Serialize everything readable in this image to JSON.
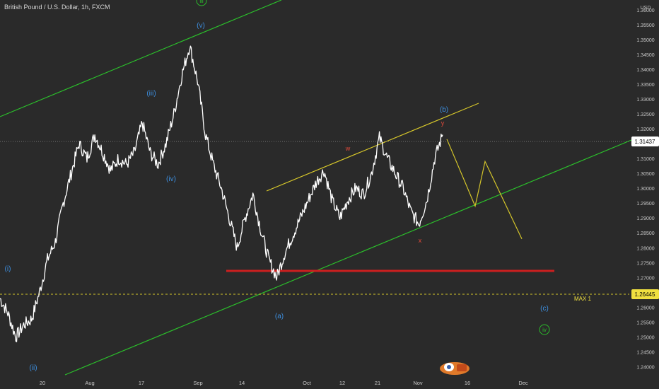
{
  "header": {
    "symbol_title": "British Pound / U.S. Dollar, 1h, FXCM",
    "currency": "USD"
  },
  "colors": {
    "background": "#2a2a2a",
    "price": "#ffffff",
    "wave_label": "#3d8fe0",
    "green_channel": "#2bbd2b",
    "yellow_channel": "#d4c52a",
    "support_line": "#cc1f1f",
    "minor_label": "#e04a3a",
    "max_label": "#f0e040",
    "last_price_bg": "#ffffff"
  },
  "chart_data": {
    "type": "line",
    "title": "British Pound / U.S. Dollar, 1h, FXCM",
    "xlabel": "",
    "ylabel": "USD",
    "ylim": [
      1.2325,
      1.3633
    ],
    "x_ticks": [
      "20",
      "Aug",
      "17",
      "Sep",
      "14",
      "Oct",
      "12",
      "21",
      "Nov",
      "16",
      "Dec"
    ],
    "y_ticks": [
      "1.36000",
      "1.35500",
      "1.35000",
      "1.34500",
      "1.34000",
      "1.33500",
      "1.33000",
      "1.32500",
      "1.32000",
      "1.31500",
      "1.31000",
      "1.30500",
      "1.30000",
      "1.29500",
      "1.29000",
      "1.28500",
      "1.28000",
      "1.27500",
      "1.27000",
      "1.26500",
      "1.26000",
      "1.25500",
      "1.25000",
      "1.24500",
      "1.24000"
    ],
    "series": [
      {
        "values": [
          1.263,
          1.258,
          1.25,
          1.254,
          1.256,
          1.265,
          1.276,
          1.282,
          1.295,
          1.305,
          1.315,
          1.31,
          1.318,
          1.312,
          1.306,
          1.31,
          1.308,
          1.312,
          1.322,
          1.312,
          1.308,
          1.315,
          1.325,
          1.338,
          1.348,
          1.336,
          1.318,
          1.308,
          1.3,
          1.29,
          1.28,
          1.29,
          1.298,
          1.286,
          1.276,
          1.27,
          1.278,
          1.284,
          1.29,
          1.296,
          1.302,
          1.306,
          1.296,
          1.29,
          1.296,
          1.3,
          1.298,
          1.305,
          1.317,
          1.31,
          1.305,
          1.3,
          1.292,
          1.288,
          1.296,
          1.31,
          1.318
        ]
      }
    ],
    "last_price": "1.31437",
    "max_level": "1.26445",
    "support_level": 1.2723,
    "projection": [
      1.3165,
      1.294,
      1.309,
      1.283
    ],
    "wave_labels": [
      "(i)",
      "(ii)",
      "(iii)",
      "(iv)",
      "(v)",
      "(a)",
      "(b)",
      "(c)",
      "iii",
      "iv"
    ],
    "minor_labels": [
      "w",
      "x",
      "y"
    ],
    "max_label": "MAX 1"
  }
}
